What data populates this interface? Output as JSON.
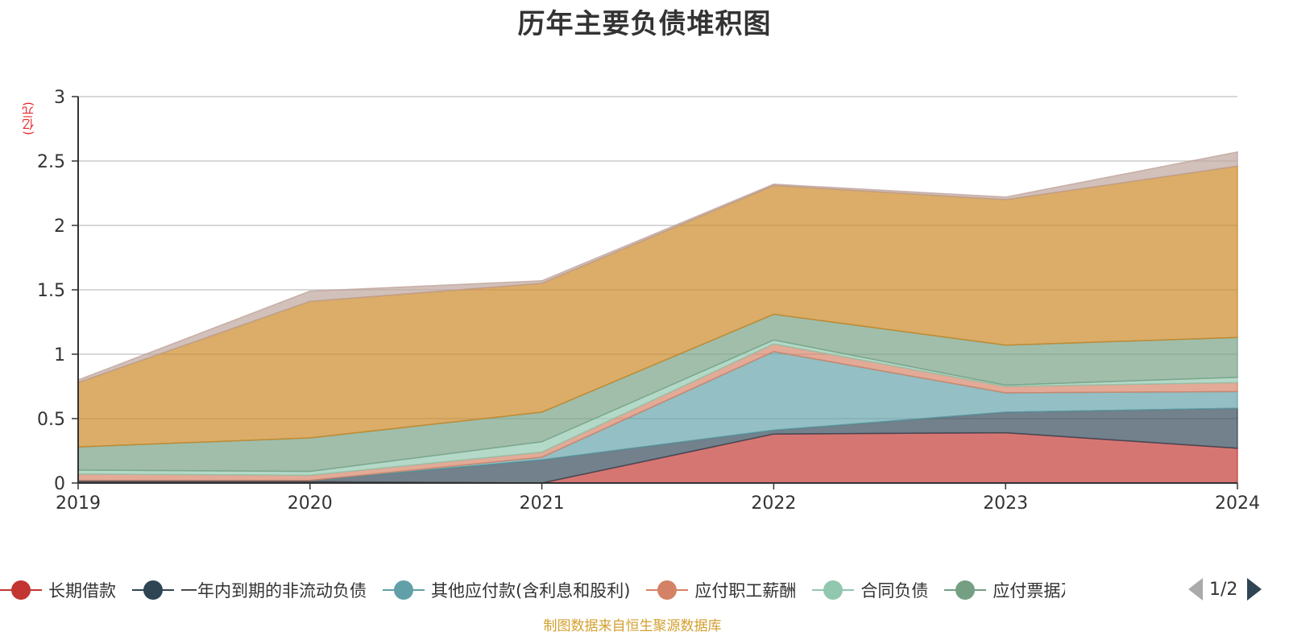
{
  "title": "历年主要负债堆积图",
  "unit": "(亿元)",
  "source": "制图数据来自恒生聚源数据库",
  "pager": {
    "text": "1/2"
  },
  "chart_data": {
    "type": "area",
    "stacked": true,
    "categories": [
      "2019",
      "2020",
      "2021",
      "2022",
      "2023",
      "2024"
    ],
    "ylim": [
      0,
      3
    ],
    "yticks": [
      "0",
      "0.5",
      "1",
      "1.5",
      "2",
      "2.5",
      "3"
    ],
    "grid": true,
    "legend_position": "bottom",
    "series": [
      {
        "name": "长期借款",
        "color": "#c23531",
        "values": [
          0.01,
          0.01,
          0.0,
          0.38,
          0.39,
          0.27
        ]
      },
      {
        "name": "一年内到期的非流动负债",
        "color": "#2f4554",
        "values": [
          0.01,
          0.01,
          0.18,
          0.03,
          0.16,
          0.31
        ]
      },
      {
        "name": "其他应付款(含利息和股利)",
        "color": "#61a0a8",
        "values": [
          0.0,
          0.0,
          0.02,
          0.61,
          0.15,
          0.13
        ]
      },
      {
        "name": "应付职工薪酬",
        "color": "#d48265",
        "values": [
          0.05,
          0.04,
          0.04,
          0.06,
          0.05,
          0.07
        ]
      },
      {
        "name": "合同负债",
        "color": "#91c7ae",
        "values": [
          0.03,
          0.03,
          0.08,
          0.03,
          0.01,
          0.04
        ]
      },
      {
        "name": "应付票据及应付账款",
        "legend_label": "应付票据及应",
        "color": "#749f83",
        "values": [
          0.18,
          0.26,
          0.23,
          0.2,
          0.31,
          0.31
        ]
      },
      {
        "name": "",
        "color": "#ca8622",
        "values": [
          0.5,
          1.06,
          1.0,
          1.0,
          1.13,
          1.33
        ]
      },
      {
        "name": "",
        "color": "#bda29a",
        "values": [
          0.02,
          0.08,
          0.02,
          0.01,
          0.02,
          0.11
        ]
      }
    ]
  }
}
